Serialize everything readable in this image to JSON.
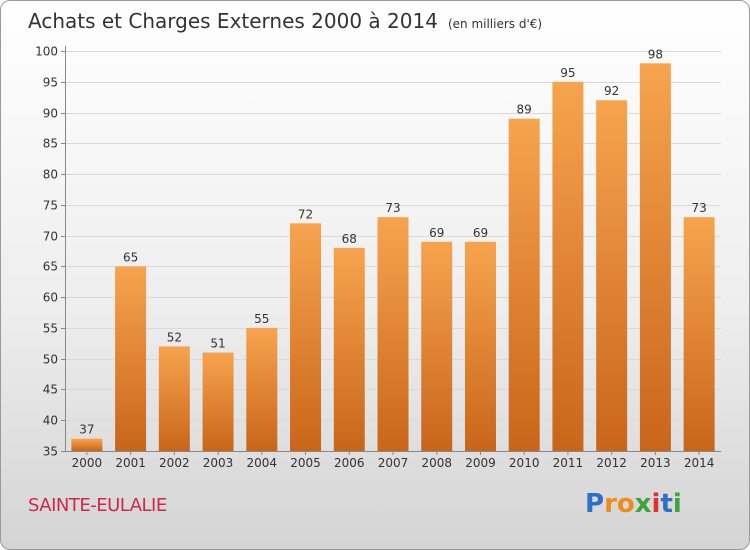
{
  "header": {
    "title": "Achats et Charges Externes 2000 à 2014",
    "subtitle": "(en milliers d'€)"
  },
  "footer": {
    "commune": "SAINTE-EULALIE",
    "logo_letters": [
      "P",
      "r",
      "o",
      "x",
      "i",
      "t",
      "i"
    ],
    "logo_colors": [
      "#2e6fc7",
      "#f08a1c",
      "#f08a1c",
      "#3aa63a",
      "#e23030",
      "#2e6fc7",
      "#3aa63a"
    ]
  },
  "chart_data": {
    "type": "bar",
    "categories": [
      "2000",
      "2001",
      "2002",
      "2003",
      "2004",
      "2005",
      "2006",
      "2007",
      "2008",
      "2009",
      "2010",
      "2011",
      "2012",
      "2013",
      "2014"
    ],
    "values": [
      37,
      65,
      52,
      51,
      55,
      72,
      68,
      73,
      69,
      69,
      89,
      95,
      92,
      98,
      73
    ],
    "ylim": [
      35,
      100
    ],
    "yticks": [
      35,
      40,
      45,
      50,
      55,
      60,
      65,
      70,
      75,
      80,
      85,
      90,
      95,
      100
    ],
    "grid": true,
    "bar_color_top": "#f7a44e",
    "bar_color_bottom": "#c9651a"
  }
}
